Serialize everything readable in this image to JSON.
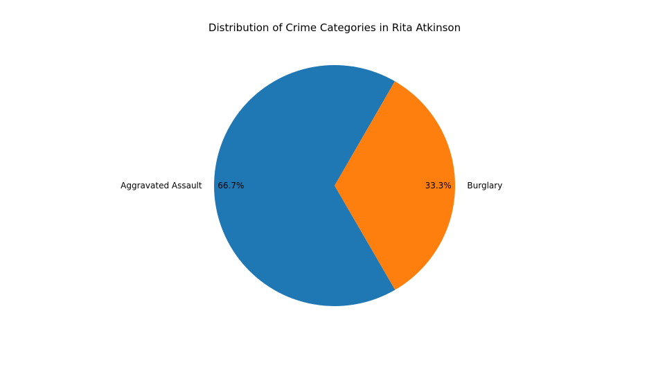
{
  "chart_data": {
    "type": "pie",
    "title": "Distribution of Crime Categories in Rita Atkinson",
    "categories": [
      "Aggravated Assault",
      "Burglary"
    ],
    "values": [
      66.7,
      33.3
    ],
    "percent_labels": [
      "66.7%",
      "33.3%"
    ],
    "colors": [
      "#1f77b4",
      "#ff7f0e"
    ],
    "start_angle_deg": 60,
    "direction": "counterclockwise",
    "legend": "none"
  }
}
